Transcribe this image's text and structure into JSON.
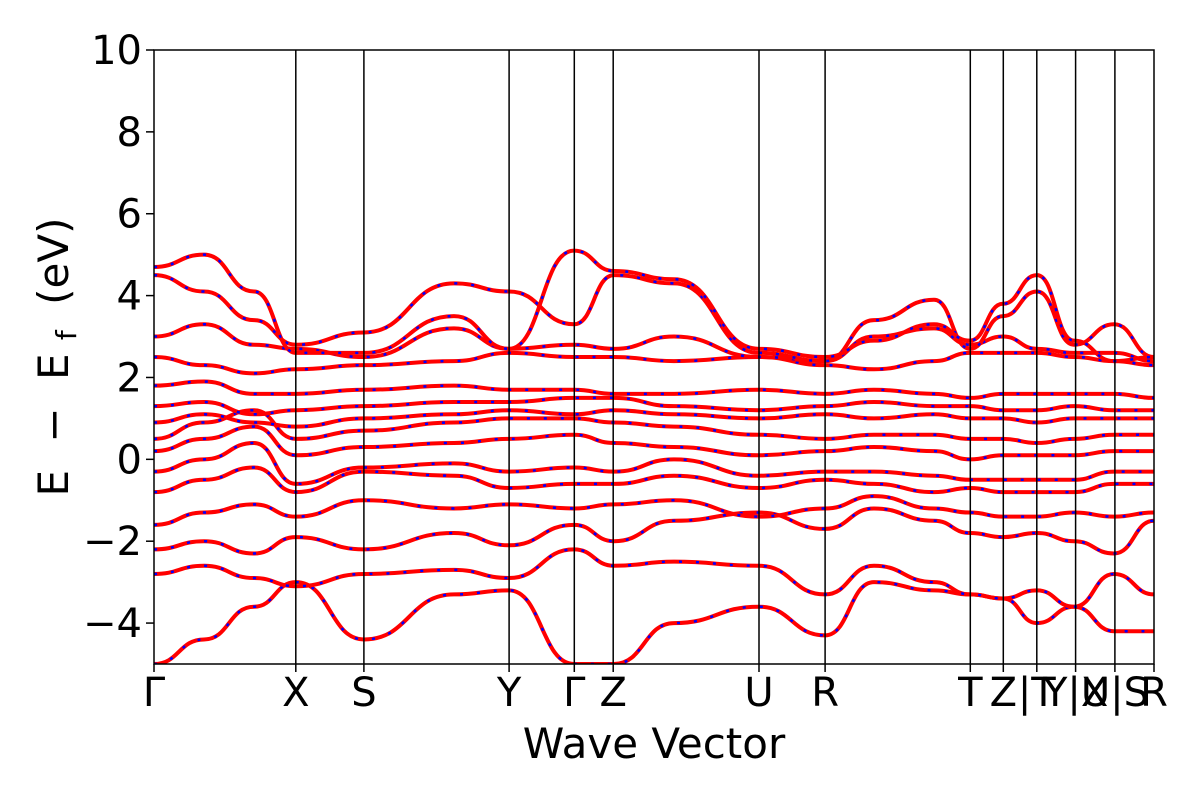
{
  "chart_data": {
    "type": "line",
    "title": "",
    "xlabel": "Wave Vector",
    "ylabel_parts": {
      "E": "E",
      "minus": "−",
      "E_sub": "E",
      "sub": "f",
      "unit": "(eV)"
    },
    "ylim": [
      -5,
      10
    ],
    "y_ticks": [
      -4,
      -2,
      0,
      2,
      4,
      6,
      8,
      10
    ],
    "y_tick_labels": [
      "−4",
      "−2",
      "0",
      "2",
      "4",
      "6",
      "8",
      "10"
    ],
    "grid": false,
    "legend": "none",
    "xlim": [
      0,
      1
    ],
    "k_points": [
      {
        "label": "Γ",
        "x": 0.0
      },
      {
        "label": "X",
        "x": 0.1418
      },
      {
        "label": "S",
        "x": 0.2099
      },
      {
        "label": "Y",
        "x": 0.3551
      },
      {
        "label": "Γ",
        "x": 0.4203
      },
      {
        "label": "Z",
        "x": 0.4592
      },
      {
        "label": "U",
        "x": 0.605
      },
      {
        "label": "R",
        "x": 0.6711
      },
      {
        "label": "T",
        "x": 0.8163
      },
      {
        "label": "Z",
        "x": 0.8493
      },
      {
        "label": "|T",
        "x": 0.8828
      },
      {
        "label": "Y|X",
        "x": 0.9216
      },
      {
        "label": "U|S",
        "x": 0.9609
      },
      {
        "label": "R",
        "x": 1.0
      }
    ],
    "band_styles": {
      "main": "#ff0000",
      "dash": "#0000ff"
    },
    "series": [
      {
        "x": [
          0,
          0.05,
          0.1,
          0.142,
          0.21,
          0.3,
          0.355,
          0.42,
          0.46,
          0.52,
          0.605,
          0.671,
          0.72,
          0.78,
          0.816,
          0.849,
          0.883,
          0.92,
          0.96,
          1.0
        ],
        "y": [
          -5.0,
          -4.4,
          -3.6,
          -3.0,
          -4.4,
          -3.3,
          -3.2,
          -5.0,
          -5.0,
          -4.0,
          -3.6,
          -4.3,
          -3.0,
          -3.2,
          -3.3,
          -3.4,
          -4.0,
          -3.6,
          -4.2,
          -4.2
        ]
      },
      {
        "x": [
          0,
          0.05,
          0.1,
          0.142,
          0.21,
          0.3,
          0.355,
          0.42,
          0.46,
          0.52,
          0.605,
          0.671,
          0.72,
          0.78,
          0.816,
          0.849,
          0.883,
          0.92,
          0.96,
          1.0
        ],
        "y": [
          -2.8,
          -2.6,
          -2.9,
          -3.1,
          -2.8,
          -2.7,
          -2.9,
          -2.2,
          -2.6,
          -2.5,
          -2.6,
          -3.3,
          -2.6,
          -3.0,
          -3.3,
          -3.4,
          -3.2,
          -3.6,
          -2.8,
          -3.3
        ]
      },
      {
        "x": [
          0,
          0.05,
          0.1,
          0.142,
          0.21,
          0.3,
          0.355,
          0.42,
          0.46,
          0.52,
          0.605,
          0.671,
          0.72,
          0.78,
          0.816,
          0.849,
          0.883,
          0.92,
          0.96,
          1.0
        ],
        "y": [
          -2.2,
          -2.0,
          -2.3,
          -1.9,
          -2.2,
          -1.8,
          -2.1,
          -1.6,
          -2.0,
          -1.5,
          -1.3,
          -1.7,
          -1.2,
          -1.5,
          -1.8,
          -1.9,
          -1.8,
          -2.0,
          -2.3,
          -1.5
        ]
      },
      {
        "x": [
          0,
          0.05,
          0.1,
          0.142,
          0.21,
          0.3,
          0.355,
          0.42,
          0.46,
          0.52,
          0.605,
          0.671,
          0.72,
          0.78,
          0.816,
          0.849,
          0.883,
          0.92,
          0.96,
          1.0
        ],
        "y": [
          -1.6,
          -1.3,
          -1.1,
          -1.4,
          -1.0,
          -1.2,
          -1.1,
          -1.2,
          -1.1,
          -1.0,
          -1.4,
          -1.2,
          -0.9,
          -1.2,
          -1.3,
          -1.4,
          -1.4,
          -1.3,
          -1.4,
          -1.3
        ]
      },
      {
        "x": [
          0,
          0.05,
          0.1,
          0.142,
          0.21,
          0.3,
          0.355,
          0.42,
          0.46,
          0.52,
          0.605,
          0.671,
          0.72,
          0.78,
          0.816,
          0.849,
          0.883,
          0.92,
          0.96,
          1.0
        ],
        "y": [
          -0.8,
          -0.5,
          -0.2,
          -0.8,
          -0.3,
          -0.4,
          -0.7,
          -0.6,
          -0.6,
          -0.4,
          -0.7,
          -0.5,
          -0.6,
          -0.8,
          -0.7,
          -0.8,
          -0.8,
          -0.8,
          -0.6,
          -0.6
        ]
      },
      {
        "x": [
          0,
          0.05,
          0.1,
          0.142,
          0.21,
          0.3,
          0.355,
          0.42,
          0.46,
          0.52,
          0.605,
          0.671,
          0.72,
          0.78,
          0.816,
          0.849,
          0.883,
          0.92,
          0.96,
          1.0
        ],
        "y": [
          -0.3,
          0.0,
          0.4,
          -0.6,
          -0.2,
          -0.1,
          -0.3,
          -0.2,
          -0.3,
          0.0,
          -0.4,
          -0.3,
          -0.3,
          -0.4,
          -0.5,
          -0.5,
          -0.5,
          -0.5,
          -0.3,
          -0.3
        ]
      },
      {
        "x": [
          0,
          0.05,
          0.1,
          0.142,
          0.21,
          0.3,
          0.355,
          0.42,
          0.46,
          0.52,
          0.605,
          0.671,
          0.72,
          0.78,
          0.816,
          0.849,
          0.883,
          0.92,
          0.96,
          1.0
        ],
        "y": [
          0.2,
          0.5,
          0.8,
          0.1,
          0.3,
          0.4,
          0.5,
          0.6,
          0.4,
          0.3,
          0.1,
          0.2,
          0.3,
          0.2,
          0.0,
          0.1,
          0.1,
          0.1,
          0.2,
          0.2
        ]
      },
      {
        "x": [
          0,
          0.05,
          0.1,
          0.142,
          0.21,
          0.3,
          0.355,
          0.42,
          0.46,
          0.52,
          0.605,
          0.671,
          0.72,
          0.78,
          0.816,
          0.849,
          0.883,
          0.92,
          0.96,
          1.0
        ],
        "y": [
          0.5,
          0.9,
          1.2,
          0.5,
          0.7,
          0.9,
          1.0,
          1.0,
          0.9,
          0.8,
          0.6,
          0.5,
          0.6,
          0.6,
          0.5,
          0.5,
          0.4,
          0.5,
          0.6,
          0.6
        ]
      },
      {
        "x": [
          0,
          0.05,
          0.1,
          0.142,
          0.21,
          0.3,
          0.355,
          0.42,
          0.46,
          0.52,
          0.605,
          0.671,
          0.72,
          0.78,
          0.816,
          0.849,
          0.883,
          0.92,
          0.96,
          1.0
        ],
        "y": [
          0.9,
          1.1,
          0.9,
          0.8,
          1.0,
          1.1,
          1.2,
          1.1,
          1.2,
          1.1,
          1.0,
          1.1,
          1.0,
          1.1,
          1.0,
          1.0,
          0.9,
          1.0,
          1.0,
          1.0
        ]
      },
      {
        "x": [
          0,
          0.05,
          0.1,
          0.142,
          0.21,
          0.3,
          0.355,
          0.42,
          0.46,
          0.52,
          0.605,
          0.671,
          0.72,
          0.78,
          0.816,
          0.849,
          0.883,
          0.92,
          0.96,
          1.0
        ],
        "y": [
          1.3,
          1.4,
          1.1,
          1.2,
          1.3,
          1.4,
          1.4,
          1.5,
          1.5,
          1.3,
          1.2,
          1.3,
          1.4,
          1.3,
          1.3,
          1.2,
          1.2,
          1.3,
          1.2,
          1.2
        ]
      },
      {
        "x": [
          0,
          0.05,
          0.1,
          0.142,
          0.21,
          0.3,
          0.355,
          0.42,
          0.46,
          0.52,
          0.605,
          0.671,
          0.72,
          0.78,
          0.816,
          0.849,
          0.883,
          0.92,
          0.96,
          1.0
        ],
        "y": [
          1.8,
          1.9,
          1.6,
          1.6,
          1.7,
          1.8,
          1.7,
          1.7,
          1.6,
          1.6,
          1.7,
          1.6,
          1.7,
          1.6,
          1.5,
          1.6,
          1.6,
          1.6,
          1.6,
          1.5
        ]
      },
      {
        "x": [
          0,
          0.05,
          0.1,
          0.142,
          0.21,
          0.3,
          0.355,
          0.42,
          0.46,
          0.52,
          0.605,
          0.671,
          0.72,
          0.78,
          0.816,
          0.849,
          0.883,
          0.92,
          0.96,
          1.0
        ],
        "y": [
          2.5,
          2.3,
          2.1,
          2.2,
          2.3,
          2.4,
          2.6,
          2.5,
          2.5,
          2.4,
          2.5,
          2.3,
          2.2,
          2.4,
          2.6,
          2.6,
          2.6,
          2.5,
          2.4,
          2.3
        ]
      },
      {
        "x": [
          0,
          0.05,
          0.1,
          0.142,
          0.21,
          0.3,
          0.355,
          0.42,
          0.46,
          0.52,
          0.605,
          0.671,
          0.72,
          0.78,
          0.816,
          0.849,
          0.883,
          0.92,
          0.96,
          1.0
        ],
        "y": [
          3.0,
          3.3,
          2.8,
          2.7,
          2.5,
          3.2,
          2.7,
          2.8,
          2.7,
          3.0,
          2.5,
          2.4,
          3.0,
          3.2,
          2.8,
          3.0,
          2.7,
          2.6,
          2.6,
          2.4
        ]
      },
      {
        "x": [
          0,
          0.05,
          0.1,
          0.142,
          0.21,
          0.3,
          0.355,
          0.42,
          0.46,
          0.52,
          0.605,
          0.671,
          0.72,
          0.78,
          0.816,
          0.849,
          0.883,
          0.92,
          0.96,
          1.0
        ],
        "y": [
          4.5,
          4.1,
          3.4,
          2.8,
          3.1,
          4.3,
          4.1,
          3.3,
          4.5,
          4.3,
          2.6,
          2.4,
          3.4,
          3.9,
          2.7,
          3.5,
          4.1,
          2.8,
          3.3,
          2.5
        ]
      },
      {
        "x": [
          0,
          0.05,
          0.1,
          0.142,
          0.21,
          0.3,
          0.355,
          0.42,
          0.46,
          0.52,
          0.605,
          0.671,
          0.72,
          0.78,
          0.816,
          0.849,
          0.883,
          0.92,
          0.96,
          1.0
        ],
        "y": [
          4.7,
          5.0,
          4.1,
          2.6,
          2.6,
          3.5,
          2.7,
          5.1,
          4.6,
          4.4,
          2.7,
          2.5,
          2.9,
          3.3,
          2.9,
          3.8,
          4.5,
          2.9,
          2.4,
          2.5
        ]
      }
    ]
  }
}
